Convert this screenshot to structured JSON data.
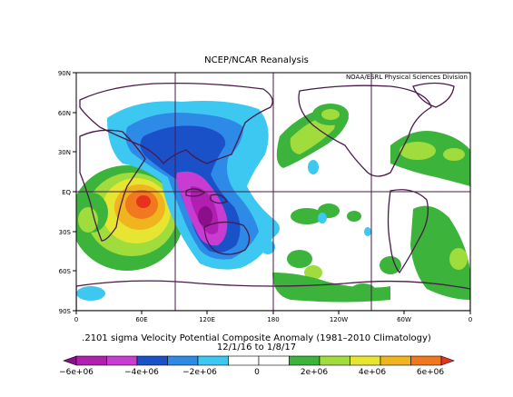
{
  "title": "NCEP/NCAR Reanalysis",
  "credit": "NOAA/ESRL Physical Sciences Division",
  "caption_line1": ".2101 sigma Velocity Potential  Composite Anomaly (1981–2010 Climatology)",
  "caption_line2": "12/1/16  to 1/8/17",
  "lat_labels": [
    "90N",
    "60N",
    "30N",
    "EQ",
    "30S",
    "60S",
    "90S"
  ],
  "lon_labels": [
    "0",
    "60E",
    "120E",
    "180",
    "120W",
    "60W",
    "0"
  ],
  "colorbar": {
    "colors": [
      "#8a0f8a",
      "#b01fb0",
      "#c83cd2",
      "#1a50c8",
      "#2d8ae6",
      "#3cc8f0",
      "#ffffff",
      "#ffffff",
      "#3cb43c",
      "#a0dc3c",
      "#e6e632",
      "#f0b41e",
      "#f0781e",
      "#e6321e"
    ],
    "tick_labels": [
      "−6e+06",
      "−4e+06",
      "−2e+06",
      "0",
      "2e+06",
      "4e+06",
      "6e+06"
    ]
  }
}
